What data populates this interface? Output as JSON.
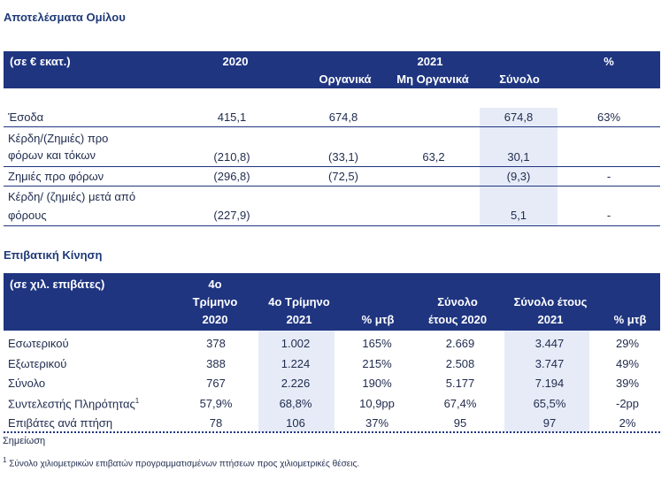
{
  "group": {
    "title": "Αποτελέσματα Ομίλου",
    "header": {
      "unit": "(σε € εκατ.)",
      "y2020": "2020",
      "y2021": "2021",
      "organic": "Οργανικά",
      "non_organic": "Μη Οργανικά",
      "total": "Σύνολο",
      "pct": "%"
    },
    "rows": [
      {
        "label": "Έσοδα",
        "v2020": "415,1",
        "organic": "674,8",
        "non_organic": "",
        "total": "674,8",
        "pct": "63%"
      },
      {
        "label_l1": "Κέρδη/(Ζημιές) προ",
        "label_l2": "φόρων και τόκων",
        "v2020": "(210,8)",
        "organic": "(33,1)",
        "non_organic": "63,2",
        "total": "30,1",
        "pct": ""
      },
      {
        "label": "Ζημιές προ φόρων",
        "v2020": "(296,8)",
        "organic": "(72,5)",
        "non_organic": "",
        "total": "(9,3)",
        "pct": "-"
      },
      {
        "label_l1": "Κέρδη/ (ζημιές) μετά από",
        "label_l2": "φόρους",
        "v2020": "(227,9)",
        "organic": "",
        "non_organic": "",
        "total": "5,1",
        "pct": "-"
      }
    ]
  },
  "traffic": {
    "title": "Επιβατική Κίνηση",
    "header": {
      "unit": "(σε χιλ. επιβάτες)",
      "q4_2020_l1": "4ο",
      "q4_2020_l2": "Τρίμηνο",
      "q4_2020_l3": "2020",
      "q4_2021_l1": "4ο Τρίμηνο",
      "q4_2021_l2": "2021",
      "pct1": "% μτβ",
      "tot2020_l1": "Σύνολο",
      "tot2020_l2": "έτους 2020",
      "tot2021_l1": "Σύνολο έτους",
      "tot2021_l2": "2021",
      "pct2": "% μτβ"
    },
    "rows": [
      {
        "label": "Εσωτερικού",
        "q2020": "378",
        "q2021": "1.002",
        "pct1": "165%",
        "t2020": "2.669",
        "t2021": "3.447",
        "pct2": "29%"
      },
      {
        "label": "Εξωτερικού",
        "q2020": "388",
        "q2021": "1.224",
        "pct1": "215%",
        "t2020": "2.508",
        "t2021": "3.747",
        "pct2": "49%"
      },
      {
        "label": "Σύνολο",
        "q2020": "767",
        "q2021": "2.226",
        "pct1": "190%",
        "t2020": "5.177",
        "t2021": "7.194",
        "pct2": "39%"
      },
      {
        "label": "Συντελεστής Πληρότητας",
        "sup": "1",
        "q2020": "57,9%",
        "q2021": "68,8%",
        "pct1": "10,9pp",
        "t2020": "67,4%",
        "t2021": "65,5%",
        "pct2": "-2pp"
      },
      {
        "label": "Επιβάτες ανά πτήση",
        "q2020": "78",
        "q2021": "106",
        "pct1": "37%",
        "t2020": "95",
        "t2021": "97",
        "pct2": "2%"
      }
    ]
  },
  "note": {
    "title": "Σημείωση",
    "sup": "1",
    "text": "Σύνολο χιλιομετρικών επιβατών προγραμματισμένων πτήσεων προς χιλιομετρικές θέσεις."
  }
}
